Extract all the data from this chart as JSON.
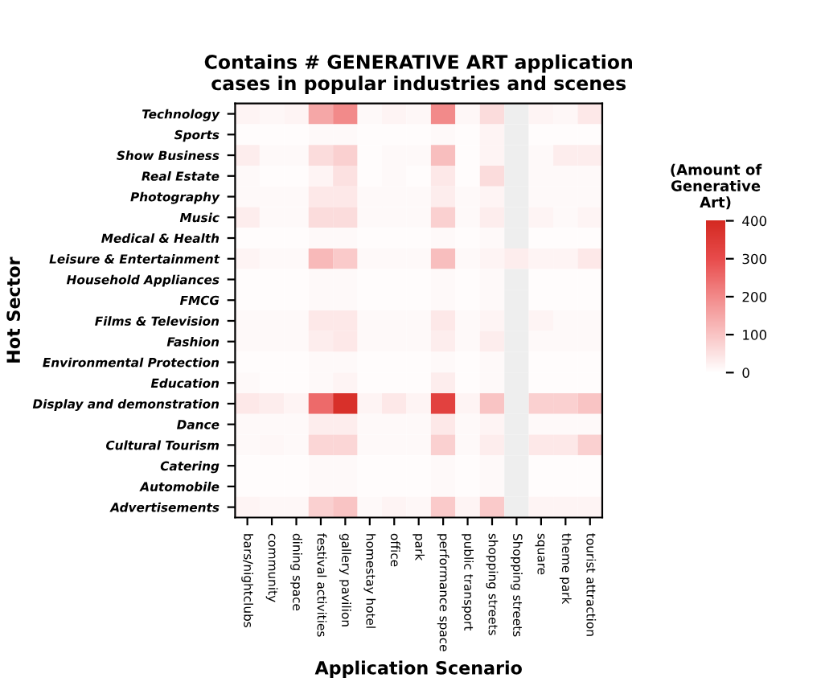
{
  "chart_data": {
    "type": "heatmap",
    "title": "Contains # GENERATIVE ART application\ncases in popular industries and scenes",
    "xlabel": "Application Scenario",
    "ylabel": "Hot Sector",
    "clabel": "(Amount of\nGenerative\nArt)",
    "categories": [
      "bars/nightclubs",
      "community",
      "dining space",
      "festival activities",
      "gallery pavilion",
      "homestay hotel",
      "office",
      "park",
      "performance space",
      "public transport",
      "shopping streets",
      "Shopping streets",
      "square",
      "theme park",
      "tourist attraction"
    ],
    "y_categories": [
      "Technology",
      "Sports",
      "Show Business",
      "Real Estate",
      "Photography",
      "Music",
      "Medical & Health",
      "Leisure & Entertainment",
      "Household Appliances",
      "FMCG",
      "Films & Television",
      "Fashion",
      "Environmental Protection",
      "Education",
      "Display and demonstration",
      "Dance",
      "Cultural Tourism",
      "Catering",
      "Automobile",
      "Advertisements"
    ],
    "cells": [
      [
        20,
        15,
        20,
        150,
        200,
        10,
        20,
        15,
        200,
        15,
        60,
        null,
        20,
        15,
        40
      ],
      [
        5,
        5,
        5,
        10,
        10,
        5,
        5,
        5,
        10,
        5,
        20,
        null,
        5,
        5,
        5
      ],
      [
        30,
        10,
        10,
        60,
        80,
        5,
        10,
        10,
        110,
        5,
        20,
        null,
        10,
        30,
        30
      ],
      [
        10,
        5,
        5,
        20,
        50,
        5,
        10,
        5,
        40,
        5,
        60,
        null,
        10,
        10,
        10
      ],
      [
        10,
        10,
        10,
        40,
        40,
        10,
        10,
        10,
        30,
        10,
        20,
        null,
        10,
        10,
        10
      ],
      [
        30,
        10,
        10,
        60,
        60,
        10,
        10,
        10,
        80,
        10,
        30,
        null,
        20,
        10,
        20
      ],
      [
        5,
        5,
        5,
        10,
        10,
        5,
        5,
        5,
        10,
        5,
        10,
        null,
        5,
        5,
        5
      ],
      [
        20,
        10,
        10,
        120,
        90,
        10,
        10,
        10,
        110,
        10,
        20,
        30,
        20,
        20,
        40
      ],
      [
        5,
        5,
        5,
        10,
        10,
        5,
        5,
        5,
        10,
        5,
        10,
        null,
        5,
        5,
        5
      ],
      [
        5,
        5,
        5,
        10,
        10,
        5,
        5,
        5,
        10,
        5,
        10,
        null,
        5,
        5,
        5
      ],
      [
        10,
        10,
        10,
        40,
        40,
        10,
        10,
        10,
        40,
        10,
        20,
        null,
        20,
        10,
        10
      ],
      [
        10,
        10,
        10,
        30,
        40,
        10,
        10,
        10,
        30,
        10,
        30,
        null,
        10,
        10,
        10
      ],
      [
        5,
        5,
        5,
        10,
        10,
        5,
        5,
        5,
        10,
        5,
        10,
        null,
        5,
        5,
        5
      ],
      [
        10,
        5,
        5,
        10,
        20,
        5,
        5,
        5,
        30,
        5,
        10,
        null,
        5,
        5,
        5
      ],
      [
        40,
        30,
        20,
        250,
        380,
        20,
        40,
        20,
        330,
        20,
        100,
        null,
        80,
        80,
        100
      ],
      [
        10,
        10,
        10,
        30,
        30,
        10,
        10,
        10,
        40,
        10,
        20,
        null,
        10,
        10,
        10
      ],
      [
        10,
        15,
        10,
        70,
        70,
        10,
        10,
        10,
        80,
        10,
        30,
        null,
        40,
        40,
        80
      ],
      [
        5,
        5,
        5,
        10,
        10,
        5,
        5,
        5,
        10,
        5,
        10,
        null,
        5,
        5,
        5
      ],
      [
        5,
        5,
        5,
        10,
        10,
        5,
        5,
        5,
        10,
        5,
        10,
        null,
        5,
        5,
        5
      ],
      [
        20,
        15,
        15,
        80,
        100,
        10,
        20,
        15,
        90,
        20,
        90,
        null,
        20,
        20,
        20
      ]
    ],
    "clim": [
      0,
      400
    ],
    "cticks": [
      400,
      300,
      200,
      100,
      0
    ]
  }
}
